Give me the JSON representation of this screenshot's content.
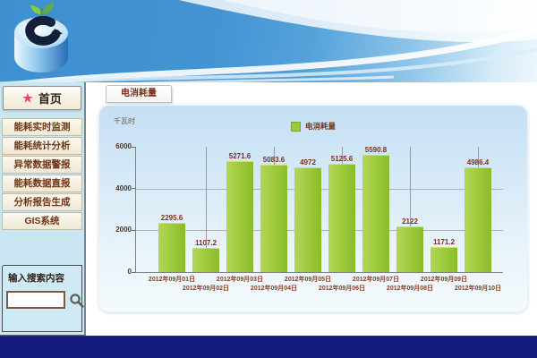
{
  "sidebar": {
    "home_label": "首页",
    "menu_items": [
      {
        "label": "能耗实时监测"
      },
      {
        "label": "能耗统计分析"
      },
      {
        "label": "异常数据警报"
      },
      {
        "label": "能耗数据直报"
      },
      {
        "label": "分析报告生成"
      },
      {
        "label": "GIS系统"
      }
    ],
    "search_label": "输入搜索内容",
    "search_value": ""
  },
  "main": {
    "tab_label": "电消耗量"
  },
  "chart_data": {
    "type": "bar",
    "title": "",
    "xlabel": "",
    "ylabel": "千瓦时",
    "legend": [
      "电消耗量"
    ],
    "legend_position": "top-center",
    "categories": [
      "2012年09月01日",
      "2012年09月02日",
      "2012年09月03日",
      "2012年09月04日",
      "2012年09月05日",
      "2012年09月06日",
      "2012年09月07日",
      "2012年09月08日",
      "2012年09月09日",
      "2012年09月10日"
    ],
    "values": [
      2295.6,
      1107.2,
      5271.6,
      5083.6,
      4972,
      5125.6,
      5590.8,
      2122,
      1171.2,
      4986.4
    ],
    "ylim": [
      0,
      6000
    ],
    "yticks": [
      0,
      2000,
      4000,
      6000
    ],
    "grid": true,
    "bar_color": "#9bc938"
  },
  "colors": {
    "bar_green": "#9bc938",
    "footer_navy": "#131a7c",
    "sidebar_blue": "#c9e6f2",
    "menu_cream": "#f8f4e6",
    "label_maroon": "#7d2f1f",
    "header_blue": "#3e8fd0"
  }
}
